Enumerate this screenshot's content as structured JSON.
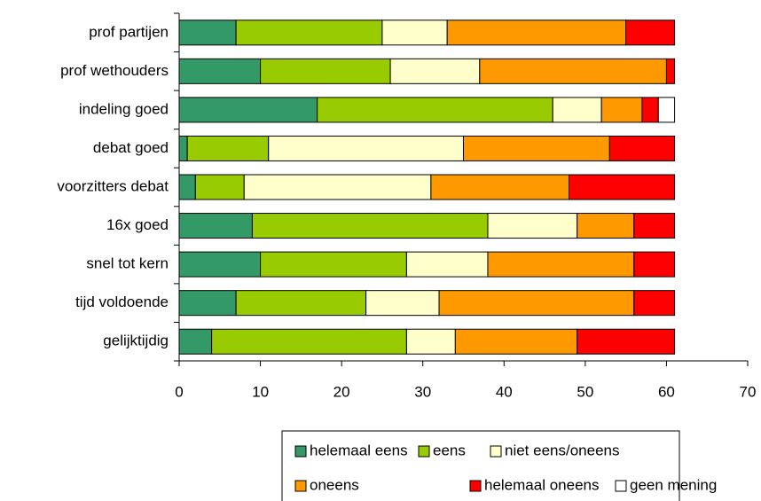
{
  "chart_data": {
    "type": "stacked-barh",
    "categories": [
      "prof partijen",
      "prof wethouders",
      "indeling goed",
      "debat goed",
      "voorzitters debat",
      "16x goed",
      "snel tot kern",
      "tijd voldoende",
      "gelijktijdig"
    ],
    "series": [
      {
        "name": "helemaal eens",
        "color": "#339966",
        "values": [
          7,
          10,
          17,
          1,
          2,
          9,
          10,
          7,
          4
        ]
      },
      {
        "name": "eens",
        "color": "#99cc00",
        "values": [
          18,
          16,
          29,
          10,
          6,
          29,
          18,
          16,
          24
        ]
      },
      {
        "name": "niet eens/oneens",
        "color": "#ffffcc",
        "values": [
          8,
          11,
          6,
          24,
          23,
          11,
          10,
          9,
          6
        ]
      },
      {
        "name": "oneens",
        "color": "#ff9900",
        "values": [
          22,
          23,
          5,
          18,
          17,
          7,
          18,
          24,
          15
        ]
      },
      {
        "name": "helemaal oneens",
        "color": "#ff0000",
        "values": [
          6,
          1,
          2,
          8,
          13,
          5,
          5,
          5,
          12
        ]
      },
      {
        "name": "geen mening",
        "color": "#ffffff",
        "values": [
          0,
          0,
          2,
          0,
          0,
          0,
          0,
          0,
          0
        ]
      }
    ],
    "xlim": [
      0,
      70
    ],
    "xticks": [
      0,
      10,
      20,
      30,
      40,
      50,
      60,
      70
    ],
    "legend": "bottom"
  }
}
